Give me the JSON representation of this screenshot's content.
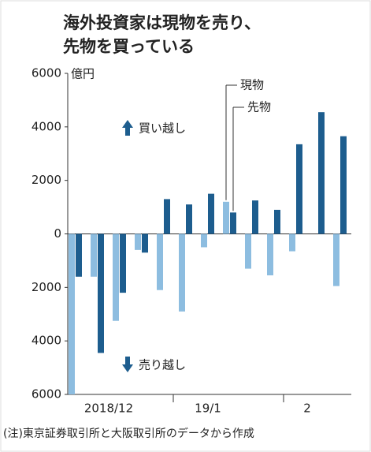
{
  "chart_data": {
    "type": "bar",
    "title": [
      "海外投資家は現物を売り、",
      "先物を買っている"
    ],
    "unit": "億円",
    "categories": [
      null,
      "2018/12",
      null,
      null,
      null,
      null,
      "19/1",
      null,
      null,
      null,
      null,
      "2",
      null
    ],
    "series": [
      {
        "name": "現物",
        "color": "#8dbde0",
        "values": [
          -6000,
          -1600,
          -3250,
          -600,
          -2100,
          -2900,
          -500,
          1200,
          -1300,
          -1550,
          -650,
          0,
          -1950
        ]
      },
      {
        "name": "先物",
        "color": "#1d5d8e",
        "values": [
          -1600,
          -4450,
          -2200,
          -700,
          1300,
          1100,
          1500,
          800,
          1250,
          900,
          3350,
          4550,
          3650
        ]
      }
    ],
    "ylim": [
      -6000,
      6000
    ],
    "yticks": [
      {
        "value": 6000,
        "label": "6000"
      },
      {
        "value": 4000,
        "label": "4000"
      },
      {
        "value": 2000,
        "label": "2000"
      },
      0,
      {
        "value": -2000,
        "label": "2000"
      },
      {
        "value": -4000,
        "label": "4000"
      },
      {
        "value": -6000,
        "label": "6000"
      }
    ],
    "annotations": [
      "買い越し",
      "売り越し"
    ],
    "note": "(注)東京証券取引所と大阪取引所のデータから作成"
  }
}
